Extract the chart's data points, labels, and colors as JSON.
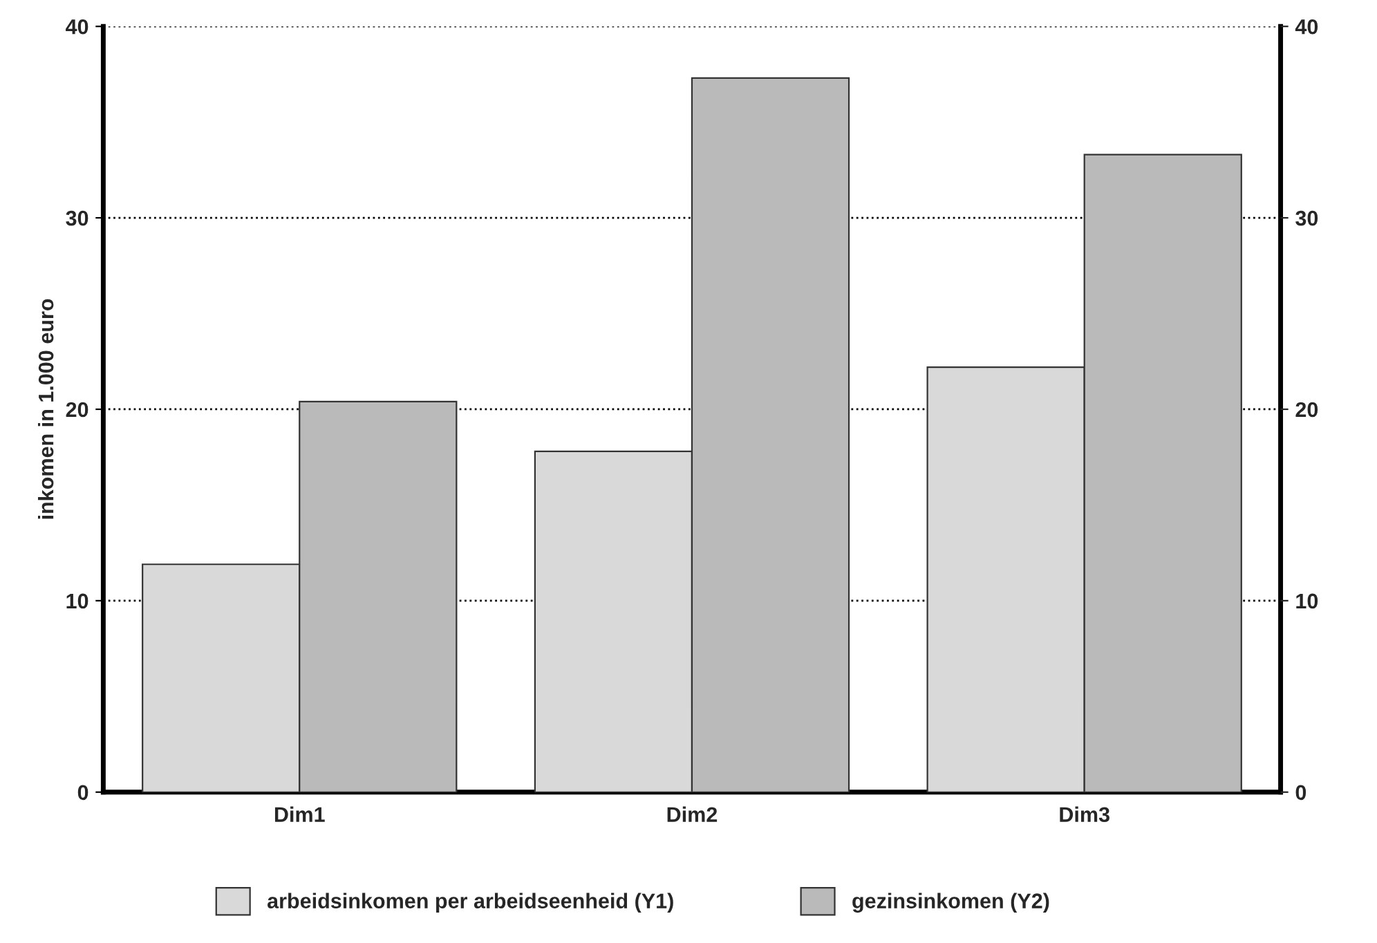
{
  "chart_data": {
    "type": "bar",
    "ylabel": "inkomen in 1.000 euro",
    "categories": [
      "Dim1",
      "Dim2",
      "Dim3"
    ],
    "series": [
      {
        "name": "arbeidsinkomen per arbeidseenheid (Y1)",
        "color": "#d9d9d9",
        "values": [
          11.9,
          17.8,
          22.2
        ]
      },
      {
        "name": "gezinsinkomen (Y2)",
        "color": "#bababa",
        "values": [
          20.4,
          37.3,
          33.3
        ]
      }
    ],
    "ylim": [
      0,
      40
    ],
    "yticks": [
      0,
      10,
      20,
      30,
      40
    ],
    "y2lim": [
      0,
      40
    ],
    "y2ticks": [
      0,
      10,
      20,
      30,
      40
    ],
    "grid": "y",
    "legend": "bottom"
  }
}
